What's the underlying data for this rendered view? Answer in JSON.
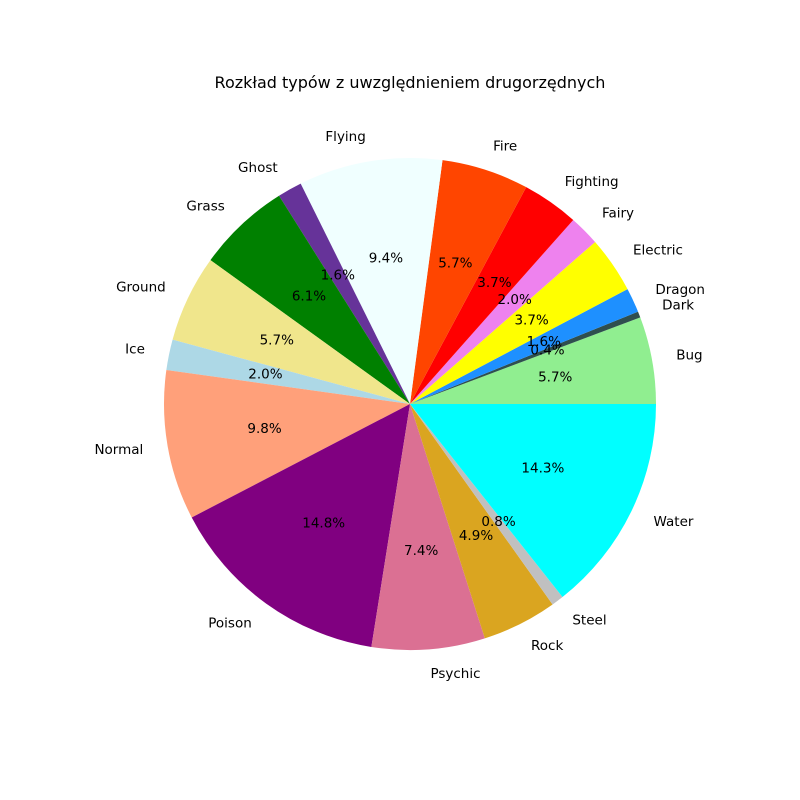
{
  "chart_data": {
    "type": "pie",
    "title": "Rozkład typów z uwzględnieniem drugorzędnych",
    "start_angle_deg": 0,
    "direction": "counterclockwise",
    "slices": [
      {
        "label": "Bug",
        "value": 5.7,
        "pct_text": "5.7%",
        "color": "#90ee90"
      },
      {
        "label": "Dark",
        "value": 0.4,
        "pct_text": "0.4%",
        "color": "#2f4f4f"
      },
      {
        "label": "Dragon",
        "value": 1.6,
        "pct_text": "1.6%",
        "color": "#1e90ff"
      },
      {
        "label": "Electric",
        "value": 3.7,
        "pct_text": "3.7%",
        "color": "#ffff00"
      },
      {
        "label": "Fairy",
        "value": 2.0,
        "pct_text": "2.0%",
        "color": "#ee82ee"
      },
      {
        "label": "Fighting",
        "value": 3.7,
        "pct_text": "3.7%",
        "color": "#ff0000"
      },
      {
        "label": "Fire",
        "value": 5.7,
        "pct_text": "5.7%",
        "color": "#ff4500"
      },
      {
        "label": "Flying",
        "value": 9.4,
        "pct_text": "9.4%",
        "color": "#f0ffff"
      },
      {
        "label": "Ghost",
        "value": 1.6,
        "pct_text": "1.6%",
        "color": "#663399"
      },
      {
        "label": "Grass",
        "value": 6.1,
        "pct_text": "6.1%",
        "color": "#008000"
      },
      {
        "label": "Ground",
        "value": 5.7,
        "pct_text": "5.7%",
        "color": "#f0e68c"
      },
      {
        "label": "Ice",
        "value": 2.0,
        "pct_text": "2.0%",
        "color": "#add8e6"
      },
      {
        "label": "Normal",
        "value": 9.8,
        "pct_text": "9.8%",
        "color": "#ffa07a"
      },
      {
        "label": "Poison",
        "value": 14.8,
        "pct_text": "14.8%",
        "color": "#800080"
      },
      {
        "label": "Psychic",
        "value": 7.4,
        "pct_text": "7.4%",
        "color": "#db7093"
      },
      {
        "label": "Rock",
        "value": 4.9,
        "pct_text": "4.9%",
        "color": "#daa520"
      },
      {
        "label": "Steel",
        "value": 0.8,
        "pct_text": "0.8%",
        "color": "#c0c0c0"
      },
      {
        "label": "Water",
        "value": 14.3,
        "pct_text": "14.3%",
        "color": "#00ffff"
      }
    ]
  }
}
